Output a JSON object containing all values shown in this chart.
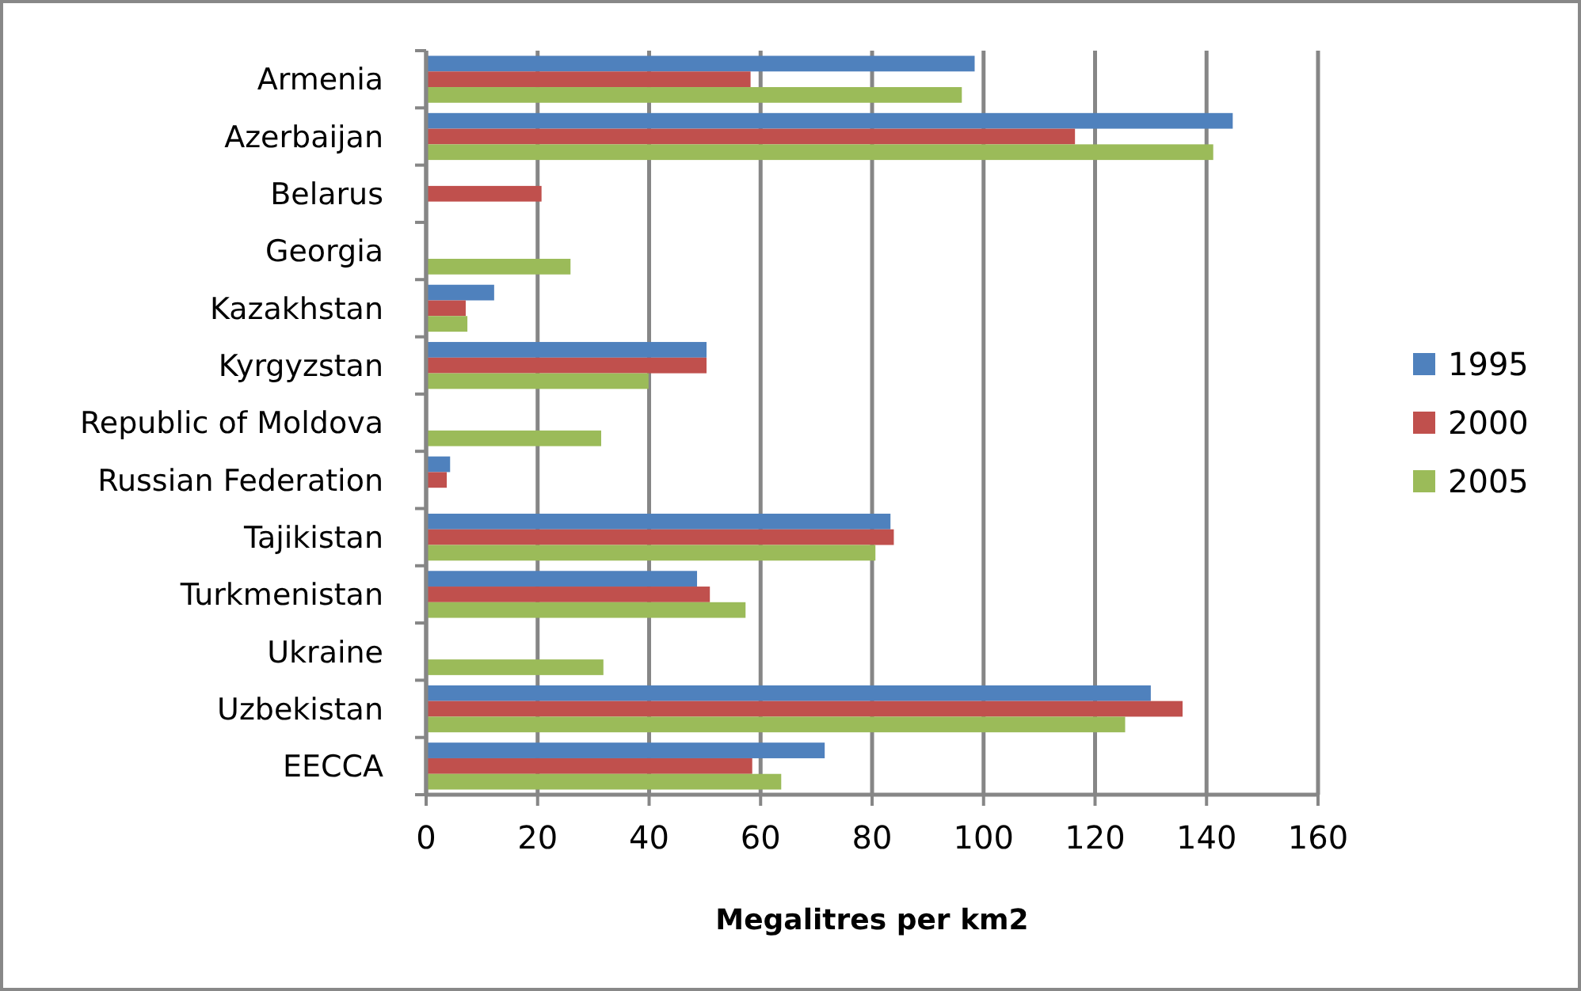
{
  "chart_data": {
    "type": "bar",
    "orientation": "horizontal",
    "xlabel": "Megalitres per km2",
    "categories": [
      "Armenia",
      "Azerbaijan",
      "Belarus",
      "Georgia",
      "Kazakhstan",
      "Kyrgyzstan",
      "Republic of Moldova",
      "Russian Federation",
      "Tajikistan",
      "Turkmenistan",
      "Ukraine",
      "Uzbekistan",
      "EECCA"
    ],
    "series": [
      {
        "name": "1995",
        "color": "#4f81bd",
        "values": [
          98.4,
          144.7,
          null,
          null,
          12.2,
          50.3,
          null,
          4.3,
          83.3,
          48.6,
          null,
          130,
          71.5
        ]
      },
      {
        "name": "2000",
        "color": "#c0504d",
        "values": [
          58.2,
          116.4,
          20.7,
          null,
          7.1,
          50.3,
          null,
          3.7,
          83.9,
          50.9,
          null,
          135.7,
          58.5
        ]
      },
      {
        "name": "2005",
        "color": "#9bbb59",
        "values": [
          96.1,
          141.2,
          null,
          25.9,
          7.4,
          39.9,
          31.4,
          null,
          80.6,
          57.3,
          31.8,
          125.4,
          63.7
        ]
      }
    ],
    "xlim": [
      0,
      160
    ],
    "xticks": [
      0,
      20,
      40,
      60,
      80,
      100,
      120,
      140,
      160
    ],
    "grid": "x",
    "legend": "right"
  }
}
